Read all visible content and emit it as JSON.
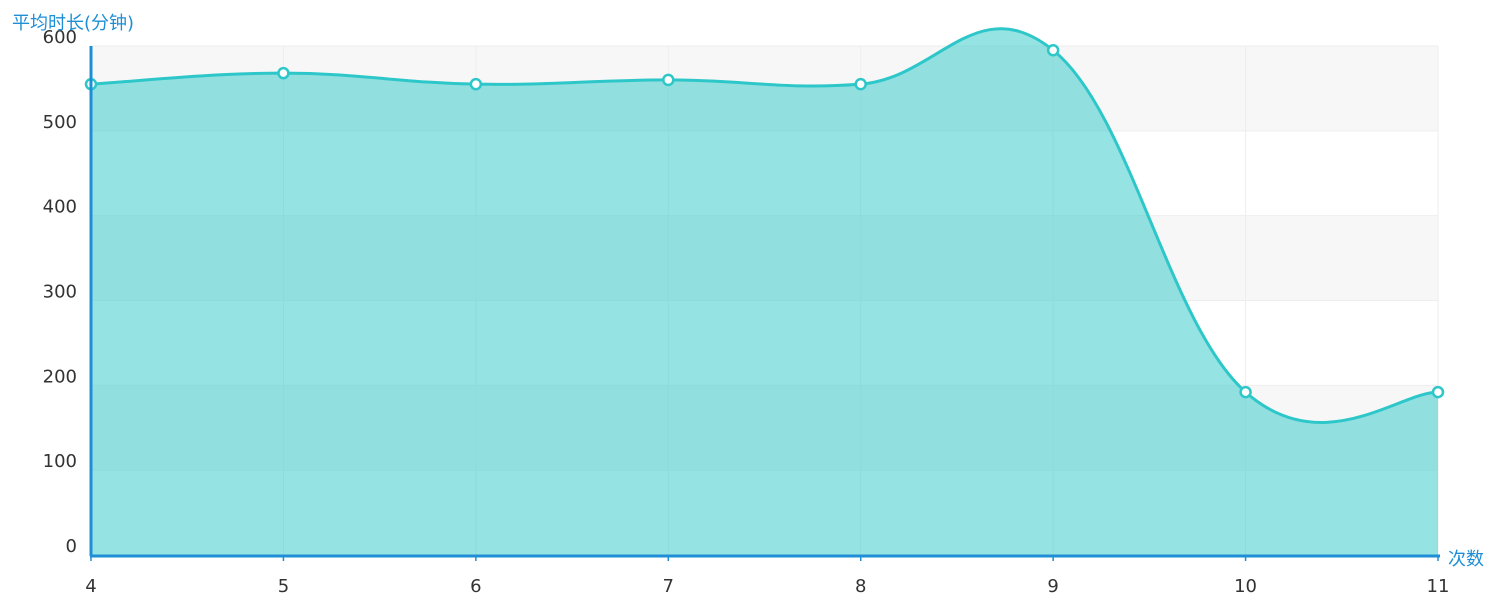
{
  "chart_data": {
    "type": "line",
    "y_axis_label": "平均时长(分钟)",
    "x_axis_label": "次数",
    "categories": [
      "4",
      "5",
      "6",
      "7",
      "8",
      "9",
      "10",
      "11"
    ],
    "series": [
      {
        "name": "平均时长",
        "color": "#2ec7c9",
        "values": [
          555,
          568,
          555,
          560,
          555,
          595,
          192,
          192
        ]
      }
    ],
    "ylim": [
      0,
      600
    ],
    "yticks": [
      0,
      100,
      200,
      300,
      400,
      500,
      600
    ],
    "grid": true,
    "split_area": true,
    "smooth": true,
    "area": true,
    "axis_color": "#1e8fd6"
  }
}
